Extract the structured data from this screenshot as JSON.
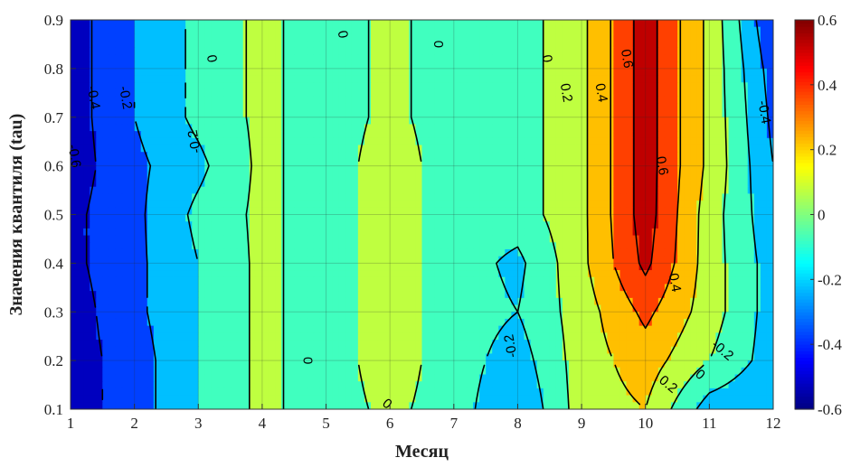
{
  "chart_data": {
    "type": "heatmap",
    "subtype": "filled-contour",
    "xlabel": "Месяц",
    "ylabel": "Значения квантиля (tau)",
    "xlim": [
      1,
      12
    ],
    "ylim": [
      0.1,
      0.9
    ],
    "x_ticks": [
      "1",
      "2",
      "3",
      "4",
      "5",
      "6",
      "7",
      "8",
      "9",
      "10",
      "11",
      "12"
    ],
    "y_ticks": [
      "0.1",
      "0.2",
      "0.3",
      "0.4",
      "0.5",
      "0.6",
      "0.7",
      "0.8",
      "0.9"
    ],
    "colorbar": {
      "range": [
        -0.6,
        0.6
      ],
      "ticks": [
        "-0.6",
        "-0.4",
        "-0.2",
        "0",
        "0.2",
        "0.4",
        "0.6"
      ],
      "colormap": "jet"
    },
    "levels": [
      -0.6,
      -0.4,
      -0.2,
      0,
      0.2,
      0.4,
      0.6
    ],
    "grid": true,
    "x": [
      1,
      2,
      3,
      4,
      5,
      6,
      7,
      8,
      9,
      10,
      11,
      12
    ],
    "y": [
      0.1,
      0.2,
      0.3,
      0.4,
      0.5,
      0.6,
      0.7,
      0.8,
      0.9
    ],
    "z": [
      [
        -0.7,
        -0.5,
        -0.2,
        0.05,
        -0.1,
        0.05,
        -0.1,
        -0.4,
        0.1,
        0.2,
        -0.3,
        -0.4
      ],
      [
        -0.7,
        -0.5,
        -0.2,
        0.05,
        -0.1,
        0.1,
        -0.1,
        -0.3,
        0.1,
        0.3,
        0.0,
        -0.3
      ],
      [
        -0.7,
        -0.45,
        -0.2,
        0.05,
        -0.1,
        0.1,
        -0.1,
        -0.2,
        0.1,
        0.45,
        0.1,
        -0.3
      ],
      [
        -0.65,
        -0.45,
        -0.2,
        0.05,
        -0.1,
        0.1,
        -0.1,
        -0.25,
        0.15,
        0.65,
        0.1,
        -0.3
      ],
      [
        -0.65,
        -0.45,
        -0.15,
        0.05,
        -0.1,
        0.1,
        -0.1,
        -0.1,
        0.15,
        0.7,
        0.1,
        -0.35
      ],
      [
        -0.7,
        -0.45,
        -0.25,
        0.05,
        -0.1,
        0.1,
        -0.1,
        -0.1,
        0.15,
        0.7,
        0.15,
        -0.4
      ],
      [
        -0.7,
        -0.4,
        -0.15,
        0.05,
        -0.1,
        0.05,
        -0.1,
        -0.1,
        0.15,
        0.7,
        0.15,
        -0.45
      ],
      [
        -0.7,
        -0.4,
        -0.15,
        0.05,
        -0.1,
        0.05,
        -0.1,
        -0.1,
        0.15,
        0.7,
        0.15,
        -0.5
      ],
      [
        -0.7,
        -0.4,
        -0.15,
        0.05,
        -0.1,
        0.05,
        -0.1,
        -0.1,
        0.15,
        0.7,
        0.15,
        -0.6
      ]
    ],
    "contour_labels": [
      {
        "text": "-0.4",
        "x": 1.35,
        "y": 0.74,
        "angle": 80
      },
      {
        "text": "-0.2",
        "x": 1.85,
        "y": 0.74,
        "angle": 80
      },
      {
        "text": "-0.6",
        "x": 1.05,
        "y": 0.62,
        "angle": 80
      },
      {
        "text": "-0.2",
        "x": 2.95,
        "y": 0.65,
        "angle": 260
      },
      {
        "text": "0",
        "x": 3.2,
        "y": 0.82,
        "angle": 80
      },
      {
        "text": "0",
        "x": 5.25,
        "y": 0.87,
        "angle": 80
      },
      {
        "text": "0",
        "x": 6.75,
        "y": 0.85,
        "angle": 90
      },
      {
        "text": "0",
        "x": 4.7,
        "y": 0.2,
        "angle": 90
      },
      {
        "text": "0",
        "x": 5.95,
        "y": 0.11,
        "angle": 40
      },
      {
        "text": "-0.2",
        "x": 7.9,
        "y": 0.23,
        "angle": 260
      },
      {
        "text": "0",
        "x": 8.45,
        "y": 0.82,
        "angle": 80
      },
      {
        "text": "0.2",
        "x": 8.75,
        "y": 0.75,
        "angle": 80
      },
      {
        "text": "0.4",
        "x": 9.3,
        "y": 0.75,
        "angle": 80
      },
      {
        "text": "0.6",
        "x": 9.7,
        "y": 0.82,
        "angle": 80
      },
      {
        "text": "0.6",
        "x": 10.25,
        "y": 0.6,
        "angle": 80
      },
      {
        "text": "0.4",
        "x": 10.45,
        "y": 0.36,
        "angle": 80
      },
      {
        "text": "0.2",
        "x": 10.35,
        "y": 0.15,
        "angle": 40
      },
      {
        "text": "0",
        "x": 10.85,
        "y": 0.17,
        "angle": 40
      },
      {
        "text": "-0.2",
        "x": 11.2,
        "y": 0.22,
        "angle": 40
      },
      {
        "text": "-0.4",
        "x": 11.85,
        "y": 0.71,
        "angle": 80
      }
    ]
  }
}
